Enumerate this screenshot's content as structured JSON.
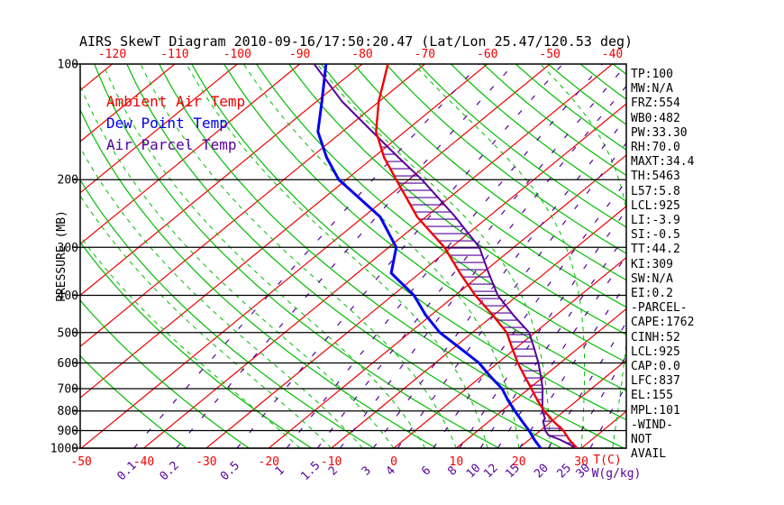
{
  "title": "AIRS SkewT Diagram 2010-09-16/17:50:20.47 (Lat/Lon 25.47/120.53 deg)",
  "legend": {
    "items": [
      {
        "label": "Ambient Air Temp",
        "color": "#f00000"
      },
      {
        "label": "Dew Point Temp",
        "color": "#0000ee"
      },
      {
        "label": "Air Parcel Temp",
        "color": "#56009b"
      }
    ]
  },
  "stats_panel": {
    "lines": [
      "TP:100",
      "MW:N/A",
      "FRZ:554",
      "WB0:482",
      "PW:33.30",
      "RH:70.0",
      "MAXT:34.4",
      "TH:5463",
      "L57:5.8",
      "LCL:925",
      "LI:-3.9",
      "SI:-0.5",
      "TT:44.2",
      "KI:309",
      "SW:N/A",
      "EI:0.2",
      "-PARCEL-",
      "CAPE:1762",
      "CINH:52",
      "LCL:925",
      "CAP:0.0",
      "LFC:837",
      "EL:155",
      "MPL:101",
      "-WIND-",
      "NOT",
      "AVAIL"
    ]
  },
  "chart_data": {
    "type": "line",
    "subtype": "skewt-logp",
    "pressure_axis": {
      "label": "PRESSURE (MB)",
      "ticks": [
        100,
        200,
        300,
        400,
        500,
        600,
        700,
        800,
        900,
        1000
      ],
      "range": [
        100,
        1000
      ],
      "scale": "log"
    },
    "temp_axis": {
      "label": "T(C)",
      "bottom_labels": [
        -50,
        -40,
        -30,
        -20,
        -10,
        0,
        10,
        20,
        30
      ],
      "top_labels": [
        -120,
        -110,
        -100,
        -90,
        -80,
        -70,
        -60,
        -50,
        -40
      ],
      "color": "#f00000"
    },
    "mixing_axis": {
      "label": "W(g/kg)",
      "values": [
        0.1,
        0.2,
        0.5,
        1,
        1.5,
        2,
        3,
        4,
        6,
        8,
        10,
        12,
        15,
        20,
        25,
        30
      ],
      "color": "#56009b"
    },
    "grid": {
      "isotherms": {
        "min": -170,
        "max": 40,
        "step": 10,
        "color": "#f00000"
      },
      "dry_adiabats": {
        "theta_min": 240,
        "theta_max": 460,
        "step": 10,
        "color": "#00bd00"
      },
      "moist_adiabats": {
        "t1000_min": -15,
        "t1000_max": 40,
        "step": 5,
        "color": "#00bd00"
      },
      "pressure_lines": [
        200,
        300,
        400,
        500,
        600,
        700,
        800,
        900,
        1000
      ]
    },
    "hatch": {
      "top_pressure": 155,
      "color": "#56009b"
    },
    "series": [
      {
        "name": "Ambient Air Temp",
        "color": "#f00000",
        "width": 2.4,
        "points": [
          [
            1000,
            29.3
          ],
          [
            950,
            26.4
          ],
          [
            900,
            23.7
          ],
          [
            850,
            20.2
          ],
          [
            800,
            16.8
          ],
          [
            750,
            13.6
          ],
          [
            700,
            10.4
          ],
          [
            650,
            6.9
          ],
          [
            600,
            3.2
          ],
          [
            550,
            -0.5
          ],
          [
            500,
            -4.5
          ],
          [
            450,
            -10.2
          ],
          [
            400,
            -16.8
          ],
          [
            350,
            -23.6
          ],
          [
            300,
            -31.1
          ],
          [
            250,
            -41.4
          ],
          [
            200,
            -52.0
          ],
          [
            175,
            -58.3
          ],
          [
            150,
            -64.6
          ],
          [
            125,
            -70.1
          ],
          [
            100,
            -75.9
          ]
        ]
      },
      {
        "name": "Dew Point Temp",
        "color": "#0000ee",
        "width": 3,
        "points": [
          [
            1000,
            23.5
          ],
          [
            950,
            20.8
          ],
          [
            900,
            18.2
          ],
          [
            850,
            15.2
          ],
          [
            800,
            12.1
          ],
          [
            750,
            8.9
          ],
          [
            700,
            5.7
          ],
          [
            650,
            1.4
          ],
          [
            600,
            -3.0
          ],
          [
            550,
            -8.8
          ],
          [
            500,
            -15.2
          ],
          [
            450,
            -20.9
          ],
          [
            400,
            -26.6
          ],
          [
            350,
            -34.6
          ],
          [
            300,
            -38.8
          ],
          [
            250,
            -47.3
          ],
          [
            200,
            -61.2
          ],
          [
            175,
            -67.5
          ],
          [
            150,
            -73.9
          ],
          [
            125,
            -79.2
          ],
          [
            100,
            -85.8
          ]
        ]
      },
      {
        "name": "Air Parcel Temp",
        "color": "#56009b",
        "width": 2,
        "points": [
          [
            1000,
            29.3
          ],
          [
            950,
            24.9
          ],
          [
            925,
            22.2
          ],
          [
            900,
            20.8
          ],
          [
            850,
            18.6
          ],
          [
            837,
            18.4
          ],
          [
            800,
            16.5
          ],
          [
            750,
            14.4
          ],
          [
            700,
            12.2
          ],
          [
            650,
            9.5
          ],
          [
            600,
            6.5
          ],
          [
            550,
            3.0
          ],
          [
            500,
            -0.9
          ],
          [
            450,
            -6.9
          ],
          [
            400,
            -13.2
          ],
          [
            350,
            -19.0
          ],
          [
            300,
            -25.5
          ],
          [
            250,
            -35.3
          ],
          [
            200,
            -47.9
          ],
          [
            175,
            -56.0
          ],
          [
            150,
            -65.2
          ],
          [
            125,
            -76.0
          ],
          [
            100,
            -87.7
          ]
        ]
      }
    ]
  }
}
